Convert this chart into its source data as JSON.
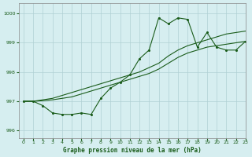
{
  "title": "Graphe pression niveau de la mer (hPa)",
  "background_color": "#d6eef0",
  "grid_color": "#b0d0d4",
  "line_color": "#1a5c1a",
  "xlim": [
    -0.5,
    23
  ],
  "ylim": [
    995.75,
    1000.35
  ],
  "yticks": [
    996,
    997,
    998,
    999,
    1000
  ],
  "xticks": [
    0,
    1,
    2,
    3,
    4,
    5,
    6,
    7,
    8,
    9,
    10,
    11,
    12,
    13,
    14,
    15,
    16,
    17,
    18,
    19,
    20,
    21,
    22,
    23
  ],
  "line_jagged": [
    997.0,
    997.0,
    996.85,
    996.6,
    996.55,
    996.55,
    996.6,
    996.55,
    997.1,
    997.45,
    997.65,
    997.9,
    998.45,
    998.75,
    999.85,
    999.65,
    999.85,
    999.8,
    998.85,
    999.35,
    998.85,
    998.75,
    998.75,
    999.05
  ],
  "line_upper": [
    997.0,
    997.0,
    997.05,
    997.1,
    997.2,
    997.3,
    997.4,
    997.5,
    997.6,
    997.7,
    997.8,
    997.9,
    998.0,
    998.15,
    998.3,
    998.55,
    998.75,
    998.9,
    999.0,
    999.1,
    999.2,
    999.3,
    999.35,
    999.4
  ],
  "line_lower": [
    997.0,
    997.0,
    997.02,
    997.05,
    997.1,
    997.15,
    997.25,
    997.35,
    997.45,
    997.55,
    997.65,
    997.75,
    997.85,
    997.95,
    998.1,
    998.3,
    998.5,
    998.65,
    998.75,
    998.85,
    998.9,
    998.95,
    999.0,
    999.05
  ]
}
